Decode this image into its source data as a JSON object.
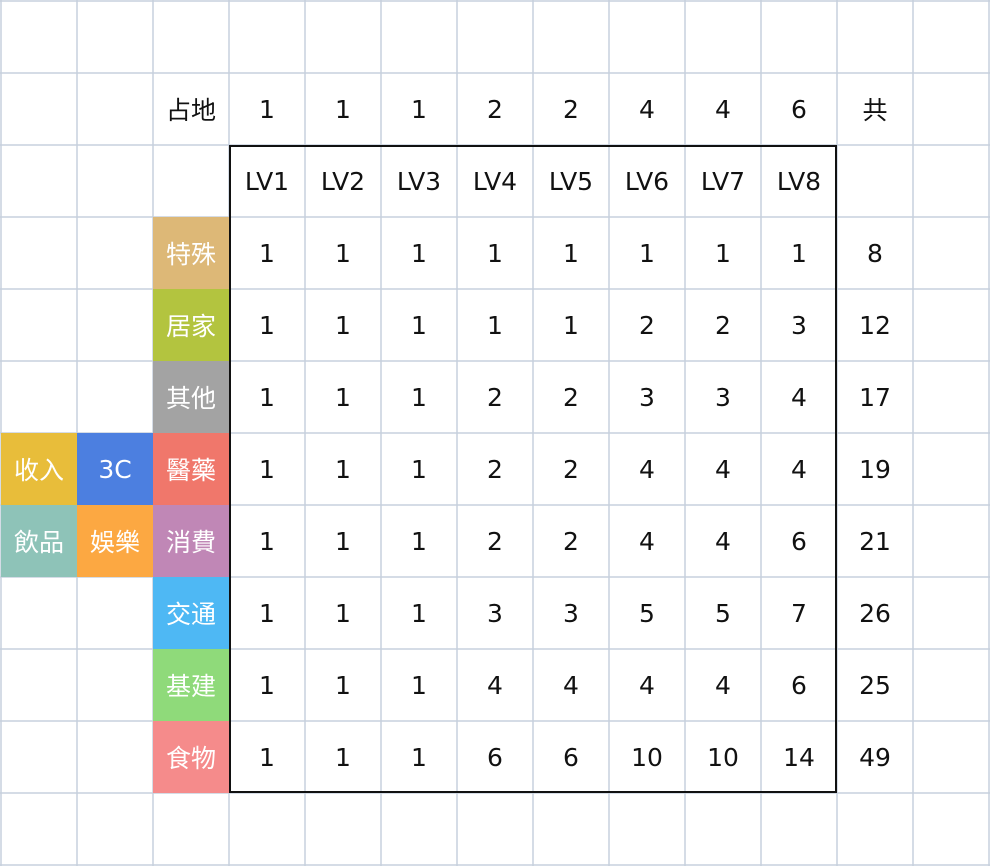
{
  "header": {
    "area_label": "占地",
    "area_values": [
      "1",
      "1",
      "1",
      "2",
      "2",
      "4",
      "4",
      "6"
    ],
    "total_label": "共"
  },
  "levels": [
    "LV1",
    "LV2",
    "LV3",
    "LV4",
    "LV5",
    "LV6",
    "LV7",
    "LV8"
  ],
  "rows": [
    {
      "category": "特殊",
      "color": "#DDB877",
      "values": [
        "1",
        "1",
        "1",
        "1",
        "1",
        "1",
        "1",
        "1"
      ],
      "total": "8"
    },
    {
      "category": "居家",
      "color": "#B3C43F",
      "values": [
        "1",
        "1",
        "1",
        "1",
        "1",
        "2",
        "2",
        "3"
      ],
      "total": "12"
    },
    {
      "category": "其他",
      "color": "#A3A3A3",
      "values": [
        "1",
        "1",
        "1",
        "2",
        "2",
        "3",
        "3",
        "4"
      ],
      "total": "17"
    },
    {
      "category": "醫藥",
      "color": "#F0776B",
      "values": [
        "1",
        "1",
        "1",
        "2",
        "2",
        "4",
        "4",
        "4"
      ],
      "total": "19"
    },
    {
      "category": "消費",
      "color": "#C087B6",
      "values": [
        "1",
        "1",
        "1",
        "2",
        "2",
        "4",
        "4",
        "6"
      ],
      "total": "21"
    },
    {
      "category": "交通",
      "color": "#4EB8F4",
      "values": [
        "1",
        "1",
        "1",
        "3",
        "3",
        "5",
        "5",
        "7"
      ],
      "total": "26"
    },
    {
      "category": "基建",
      "color": "#8FDA7A",
      "values": [
        "1",
        "1",
        "1",
        "4",
        "4",
        "4",
        "4",
        "6"
      ],
      "total": "25"
    },
    {
      "category": "食物",
      "color": "#F58B8B",
      "values": [
        "1",
        "1",
        "1",
        "6",
        "6",
        "10",
        "10",
        "14"
      ],
      "total": "49"
    }
  ],
  "side_tags": [
    {
      "label": "收入",
      "color": "#E8BD3A",
      "row": 3,
      "col": 0
    },
    {
      "label": "3C",
      "color": "#4C7FE0",
      "row": 3,
      "col": 1
    },
    {
      "label": "飲品",
      "color": "#8EC3B8",
      "row": 4,
      "col": 0
    },
    {
      "label": "娛樂",
      "color": "#FCA842",
      "row": 4,
      "col": 1
    }
  ]
}
